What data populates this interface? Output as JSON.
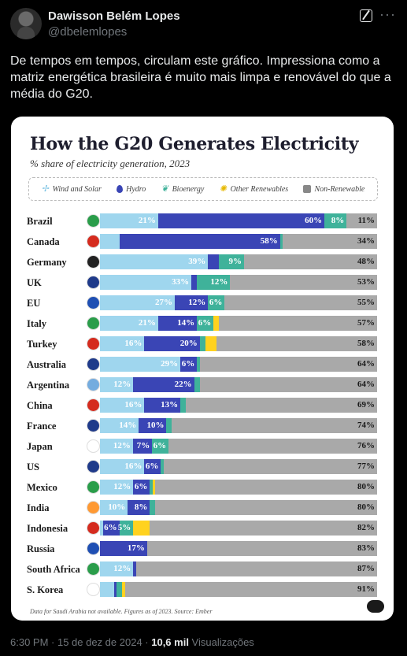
{
  "author": {
    "name": "Dawisson Belém Lopes",
    "handle": "@dbelemlopes"
  },
  "tweet_text": "De tempos em tempos, circulam este gráfico. Impressiona como a matriz energética brasileira é muito mais limpa e renovável do que a média do G20.",
  "meta": {
    "time": "6:30 PM · 15 de dez de 2024 · ",
    "views_count": "10,6 mil",
    "views_label": " Visualizações"
  },
  "colors": {
    "wind": "#9fd6ee",
    "hydro": "#3a45b5",
    "bio": "#3fb29a",
    "other": "#ffd21f",
    "nonren": "#a9a9a9"
  },
  "chart_data": {
    "type": "bar",
    "title": "How the G20 Generates Electricity",
    "subtitle": "% share of electricity generation, 2023",
    "legend": [
      "Wind and Solar",
      "Hydro",
      "Bioenergy",
      "Other Renewables",
      "Non-Renewable"
    ],
    "categories": [
      "Brazil",
      "Canada",
      "Germany",
      "UK",
      "EU",
      "Italy",
      "Turkey",
      "Australia",
      "Argentina",
      "China",
      "France",
      "Japan",
      "US",
      "Mexico",
      "India",
      "Indonesia",
      "Russia",
      "South Africa",
      "S. Korea"
    ],
    "series": [
      {
        "name": "Wind and Solar",
        "values": [
          21,
          7,
          39,
          33,
          27,
          21,
          16,
          29,
          12,
          16,
          14,
          12,
          16,
          12,
          10,
          1,
          0,
          12,
          5
        ]
      },
      {
        "name": "Hydro",
        "values": [
          60,
          58,
          4,
          2,
          12,
          14,
          20,
          6,
          22,
          13,
          10,
          7,
          6,
          6,
          8,
          6,
          17,
          1,
          1
        ]
      },
      {
        "name": "Bioenergy",
        "values": [
          8,
          1,
          9,
          12,
          6,
          6,
          2,
          1,
          2,
          2,
          2,
          6,
          1,
          1,
          2,
          5,
          0,
          0,
          2
        ]
      },
      {
        "name": "Other Renewables",
        "values": [
          0,
          0,
          0,
          0,
          0,
          2,
          4,
          0,
          0,
          0,
          0,
          0,
          0,
          1,
          0,
          6,
          0,
          0,
          1
        ]
      },
      {
        "name": "Non-Renewable",
        "values": [
          11,
          34,
          48,
          53,
          55,
          57,
          58,
          64,
          64,
          69,
          74,
          76,
          77,
          80,
          80,
          82,
          83,
          87,
          91
        ]
      }
    ],
    "labels": [
      [
        "21%",
        "60%",
        "8%",
        "",
        "11%"
      ],
      [
        "",
        "58%",
        "",
        "",
        "34%"
      ],
      [
        "39%",
        "",
        "9%",
        "",
        "48%"
      ],
      [
        "33%",
        "",
        "12%",
        "",
        "53%"
      ],
      [
        "27%",
        "12%",
        "6%",
        "",
        "55%"
      ],
      [
        "21%",
        "14%",
        "6%",
        "",
        "57%"
      ],
      [
        "16%",
        "20%",
        "",
        "",
        "58%"
      ],
      [
        "29%",
        "6%",
        "",
        "",
        "64%"
      ],
      [
        "12%",
        "22%",
        "",
        "",
        "64%"
      ],
      [
        "16%",
        "13%",
        "",
        "",
        "69%"
      ],
      [
        "14%",
        "10%",
        "",
        "",
        "74%"
      ],
      [
        "12%",
        "7%",
        "6%",
        "",
        "76%"
      ],
      [
        "16%",
        "6%",
        "",
        "",
        "77%"
      ],
      [
        "12%",
        "6%",
        "",
        "",
        "80%"
      ],
      [
        "10%",
        "8%",
        "",
        "",
        "80%"
      ],
      [
        "",
        "6%",
        "5%",
        "",
        "82%"
      ],
      [
        "",
        "17%",
        "",
        "",
        "83%"
      ],
      [
        "12%",
        "",
        "",
        "",
        "87%"
      ],
      [
        "",
        "",
        "",
        "",
        "91%"
      ]
    ],
    "xlim": [
      0,
      100
    ],
    "footnote": "Data for Saudi Arabia not available. Figures as of 2023. Source: Ember"
  }
}
